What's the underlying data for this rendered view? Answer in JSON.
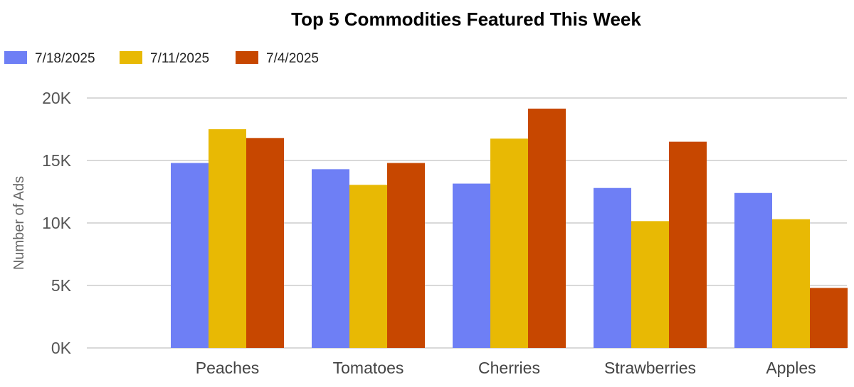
{
  "chart_data": {
    "type": "bar",
    "title": "Top 5 Commodities Featured This Week",
    "xlabel": "",
    "ylabel": "Number of Ads",
    "ylim": [
      0,
      20000
    ],
    "yticks": [
      0,
      5000,
      10000,
      15000,
      20000
    ],
    "ytick_labels": [
      "0K",
      "5K",
      "10K",
      "15K",
      "20K"
    ],
    "categories": [
      "Peaches",
      "Tomatoes",
      "Cherries",
      "Strawberries",
      "Apples"
    ],
    "series": [
      {
        "name": "7/18/2025",
        "color": "#6e7ff5",
        "values": [
          14800,
          14300,
          13150,
          12800,
          12400
        ]
      },
      {
        "name": "7/11/2025",
        "color": "#e8b904",
        "values": [
          17500,
          13050,
          16750,
          10150,
          10300
        ]
      },
      {
        "name": "7/4/2025",
        "color": "#c74700",
        "values": [
          16800,
          14800,
          19150,
          16500,
          4800
        ]
      }
    ],
    "grid": true,
    "legend_position": "top-left"
  }
}
